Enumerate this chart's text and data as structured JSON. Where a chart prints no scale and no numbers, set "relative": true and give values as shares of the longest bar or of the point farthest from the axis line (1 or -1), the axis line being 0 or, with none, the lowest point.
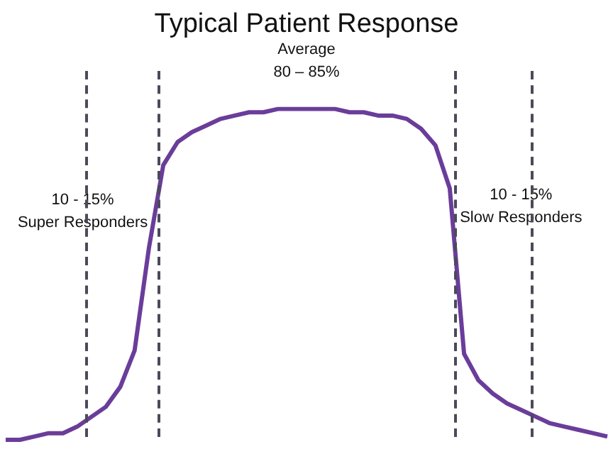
{
  "chart_data": {
    "type": "line",
    "title": "Typical Patient Response",
    "relative": true,
    "categories": [
      null,
      null,
      null,
      null,
      null,
      null,
      null,
      null,
      null,
      null,
      null,
      null,
      null,
      null,
      null,
      null,
      null,
      null,
      null,
      null,
      null,
      null,
      null,
      null,
      null,
      null,
      null,
      null,
      null,
      null,
      null,
      null,
      null,
      null,
      null,
      null,
      null,
      null,
      null,
      null,
      null,
      null,
      null
    ],
    "series": [
      {
        "color": "#6a3d9a",
        "values": [
          0,
          0,
          0.01,
          0.02,
          0.02,
          0.04,
          0.07,
          0.1,
          0.16,
          0.27,
          0.58,
          0.83,
          0.9,
          0.93,
          0.95,
          0.97,
          0.98,
          0.99,
          0.99,
          1,
          1,
          1,
          1,
          1,
          0.99,
          0.99,
          0.98,
          0.98,
          0.97,
          0.94,
          0.89,
          0.76,
          0.26,
          0.18,
          0.14,
          0.11,
          0.09,
          0.07,
          0.05,
          0.04,
          0.03,
          0.02,
          0.01
        ]
      }
    ],
    "legend": false,
    "marker": "none",
    "line_style": "solid",
    "annotations": [
      "Average\n80 – 85%",
      "10 - 15%\nSuper Responders",
      "10 - 15%\nSlow Responders"
    ]
  }
}
